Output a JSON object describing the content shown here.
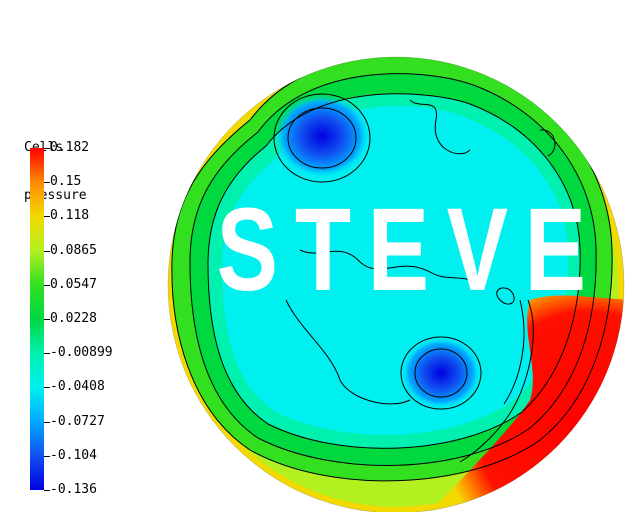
{
  "legend": {
    "title_line1": "Cells",
    "title_line2": "pressure",
    "ticks": [
      "0.182",
      "0.15",
      "0.118",
      "0.0865",
      "0.0547",
      "0.0228",
      "-0.00899",
      "-0.0408",
      "-0.0727",
      "-0.104",
      "-0.136"
    ],
    "colors": [
      "#ff0000",
      "#ff8a00",
      "#f2d900",
      "#b3f020",
      "#33e020",
      "#00d840",
      "#00f0b0",
      "#00f0f0",
      "#00a8ff",
      "#1050f0",
      "#0000e0"
    ]
  },
  "watermark": {
    "letters": [
      "S",
      "T",
      "E",
      "V",
      "E"
    ]
  },
  "chart_data": {
    "type": "heatmap",
    "title": "Cells pressure",
    "colorbar_range": [
      -0.136,
      0.182
    ],
    "colorbar_ticks": [
      0.182,
      0.15,
      0.118,
      0.0865,
      0.0547,
      0.0228,
      -0.00899,
      -0.0408,
      -0.0727,
      -0.104,
      -0.136
    ],
    "features": [
      {
        "kind": "low-pressure-core",
        "location": "upper-left",
        "value": -0.136
      },
      {
        "kind": "low-pressure-core",
        "location": "lower-center",
        "value": -0.136
      },
      {
        "kind": "high-pressure-region",
        "location": "right",
        "value": 0.182
      },
      {
        "kind": "background",
        "location": "interior",
        "value": -0.0408
      },
      {
        "kind": "rim",
        "location": "boundary",
        "value": 0.0865
      }
    ]
  }
}
